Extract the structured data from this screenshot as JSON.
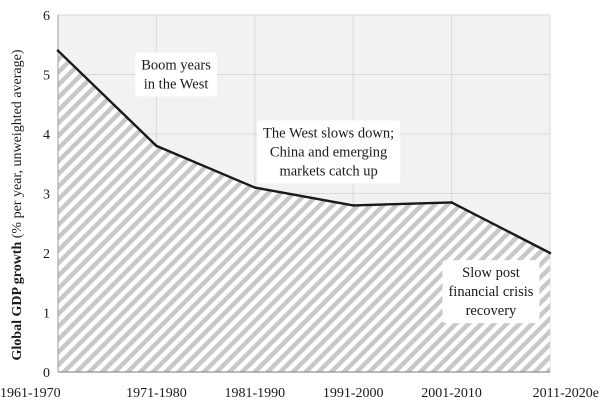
{
  "chart_data": {
    "type": "area",
    "categories": [
      "1961-1970",
      "1971-1980",
      "1981-1990",
      "1991-2000",
      "2001-2010",
      "2011-2020e"
    ],
    "values": [
      5.4,
      3.8,
      3.1,
      2.8,
      2.85,
      2.0
    ],
    "ylabel_bold": "Global GDP growth",
    "ylabel_rest": " (% per year, unweighted average)",
    "ylim": [
      0,
      6
    ],
    "yticks": [
      "0",
      "1",
      "2",
      "3",
      "4",
      "5",
      "6"
    ],
    "grid": true,
    "annotations": [
      {
        "lines": [
          "Boom years",
          "in the West"
        ],
        "x": 1.2,
        "y": 5.0
      },
      {
        "lines": [
          "The West slows down;",
          "China and emerging",
          "markets catch up"
        ],
        "x": 2.75,
        "y": 3.7
      },
      {
        "lines": [
          "Slow post",
          "financial crisis",
          "recovery"
        ],
        "x": 4.4,
        "y": 1.35
      }
    ],
    "colors": {
      "line": "#1a1a1a",
      "hatch": "#c8c8c8",
      "plot_bg": "#f2f2f2",
      "grid": "#d9d9d9"
    }
  }
}
